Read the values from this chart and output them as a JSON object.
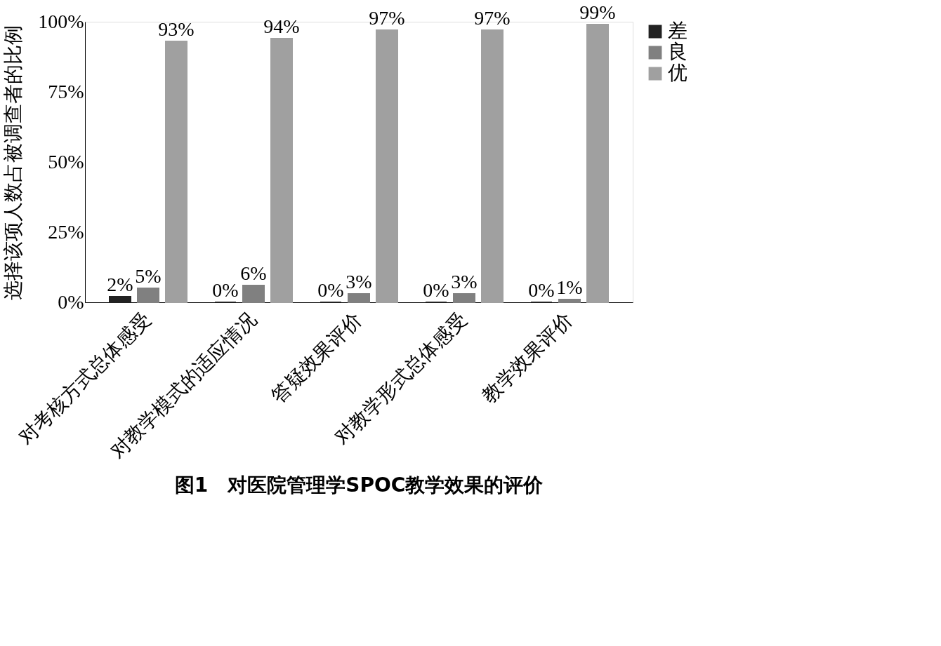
{
  "chart_data": {
    "type": "bar",
    "title": "图1　对医院管理学SPOC教学效果的评价",
    "ylabel": "选择该项人数占被调查者的比例",
    "categories": [
      "对考核方式总体感受",
      "对教学模式的适应情况",
      "答疑效果评价",
      "对教学形式总体感受",
      "教学效果评价"
    ],
    "series": [
      {
        "name": "差",
        "color": "#222222",
        "values": [
          2,
          0,
          0,
          0,
          0
        ],
        "value_labels": [
          "2%",
          "0%",
          "0%",
          "0%",
          "0%"
        ]
      },
      {
        "name": "良",
        "color": "#808080",
        "values": [
          5,
          6,
          3,
          3,
          1
        ],
        "value_labels": [
          "5%",
          "6%",
          "3%",
          "3%",
          "1%"
        ]
      },
      {
        "name": "优",
        "color": "#a0a0a0",
        "values": [
          93,
          94,
          97,
          97,
          99
        ],
        "value_labels": [
          "93%",
          "94%",
          "97%",
          "97%",
          "99%"
        ]
      }
    ],
    "ylim": [
      0,
      100
    ],
    "yticks": [
      {
        "value": 0,
        "label": "0%"
      },
      {
        "value": 25,
        "label": "25%"
      },
      {
        "value": 50,
        "label": "50%"
      },
      {
        "value": 75,
        "label": "75%"
      },
      {
        "value": 100,
        "label": "100%"
      }
    ],
    "grid": false,
    "legend": "right"
  }
}
